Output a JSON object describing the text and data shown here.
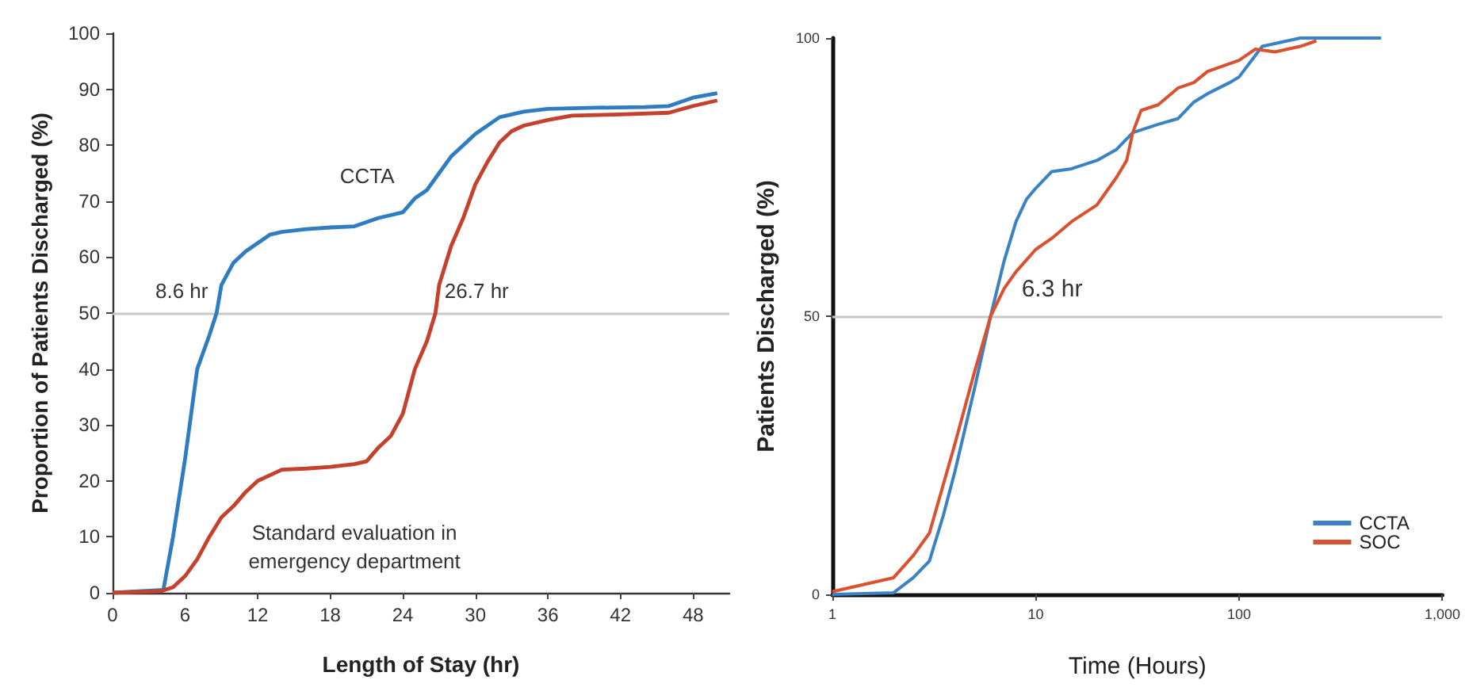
{
  "chart_data": [
    {
      "type": "line",
      "xlabel": "Length of Stay (hr)",
      "ylabel": "Proportion of Patients Discharged (%)",
      "xlim": [
        0,
        51
      ],
      "xticks": [
        0,
        6,
        12,
        18,
        24,
        30,
        36,
        42,
        48
      ],
      "ylim": [
        0,
        100
      ],
      "yticks": [
        0,
        10,
        20,
        30,
        40,
        50,
        60,
        70,
        80,
        90,
        100
      ],
      "grid": false,
      "legend": false,
      "marker": "none",
      "line_style": "solid",
      "series": [
        {
          "name": "CCTA",
          "color": "#2f7cc0",
          "x": [
            0,
            4.2,
            5,
            6,
            7,
            8,
            8.6,
            9,
            10,
            11,
            12,
            13,
            14,
            16,
            18,
            20,
            22,
            24,
            25,
            26,
            27,
            28,
            29,
            30,
            32,
            34,
            36,
            40,
            44,
            46,
            48,
            50
          ],
          "values": [
            0,
            0.5,
            10,
            24,
            40,
            46,
            50,
            55,
            59,
            61,
            62.5,
            64,
            64.5,
            65,
            65.3,
            65.5,
            67,
            68,
            70.5,
            72,
            75,
            78,
            80,
            82,
            85,
            86,
            86.5,
            86.7,
            86.8,
            87,
            88.5,
            89.3
          ]
        },
        {
          "name": "Standard evaluation in\nemergency department",
          "color": "#c4412d",
          "x": [
            0,
            4,
            5,
            6,
            7,
            8,
            9,
            10,
            11,
            12,
            14,
            16,
            18,
            20,
            21,
            22,
            23,
            24,
            25,
            26,
            26.7,
            27,
            28,
            29,
            30,
            31,
            32,
            33,
            34,
            36,
            38,
            42,
            46,
            48,
            50
          ],
          "values": [
            0,
            0.3,
            1,
            3,
            6,
            10,
            13.5,
            15.5,
            18,
            20,
            22,
            22.2,
            22.5,
            23,
            23.5,
            26,
            28,
            32,
            40,
            45,
            50,
            55,
            62,
            67,
            73,
            77,
            80.5,
            82.5,
            83.5,
            84.5,
            85.3,
            85.5,
            85.8,
            87,
            88
          ]
        }
      ],
      "ref_lines": [
        {
          "axis": "y",
          "value": 50,
          "color": "#c8c8c8"
        }
      ],
      "annotations": [
        {
          "text": "8.6 hr",
          "x": 8.6,
          "y": 50
        },
        {
          "text": "26.7 hr",
          "x": 26.7,
          "y": 50
        }
      ]
    },
    {
      "type": "line",
      "xlabel": "Time (Hours)",
      "ylabel": "Patients Discharged (%)",
      "log": "x",
      "xlim": [
        1,
        1000
      ],
      "xticks": [
        1,
        10,
        100,
        {
          "value": 1000,
          "label": "1,000"
        }
      ],
      "ylim": [
        0,
        100
      ],
      "yticks": [
        0,
        50,
        100
      ],
      "grid": false,
      "legend": "bottom right",
      "marker": "none",
      "line_style": "solid",
      "series": [
        {
          "name": "CCTA",
          "color": "#3b82c4",
          "x": [
            1,
            2,
            2.5,
            3,
            3.5,
            4,
            5,
            6,
            7,
            8,
            9,
            10,
            12,
            15,
            20,
            25,
            30,
            40,
            50,
            60,
            70,
            90,
            100,
            130,
            200,
            500
          ],
          "values": [
            0,
            0.3,
            3,
            6,
            14,
            22,
            37,
            50,
            60,
            67,
            71,
            73,
            76,
            76.5,
            78,
            80,
            83,
            84.5,
            85.5,
            88.5,
            90,
            92,
            93,
            98.5,
            100,
            100
          ]
        },
        {
          "name": "SOC",
          "color": "#d9512f",
          "x": [
            1,
            2,
            2.5,
            3,
            4,
            5,
            6,
            7,
            8,
            10,
            12,
            15,
            20,
            25,
            28,
            30,
            33,
            40,
            50,
            60,
            70,
            100,
            120,
            150,
            200,
            240
          ],
          "values": [
            0.5,
            3,
            7,
            11,
            27,
            40,
            50,
            55,
            58,
            62,
            64,
            67,
            70,
            75,
            78,
            83,
            87,
            88,
            91,
            92,
            94,
            96,
            98,
            97.5,
            98.5,
            99.5
          ]
        }
      ],
      "ref_lines": [
        {
          "axis": "y",
          "value": 50,
          "color": "#c8c8c8"
        }
      ],
      "annotations": [
        {
          "text": "6.3 hr",
          "x": 6.3,
          "y": 50
        }
      ]
    }
  ]
}
